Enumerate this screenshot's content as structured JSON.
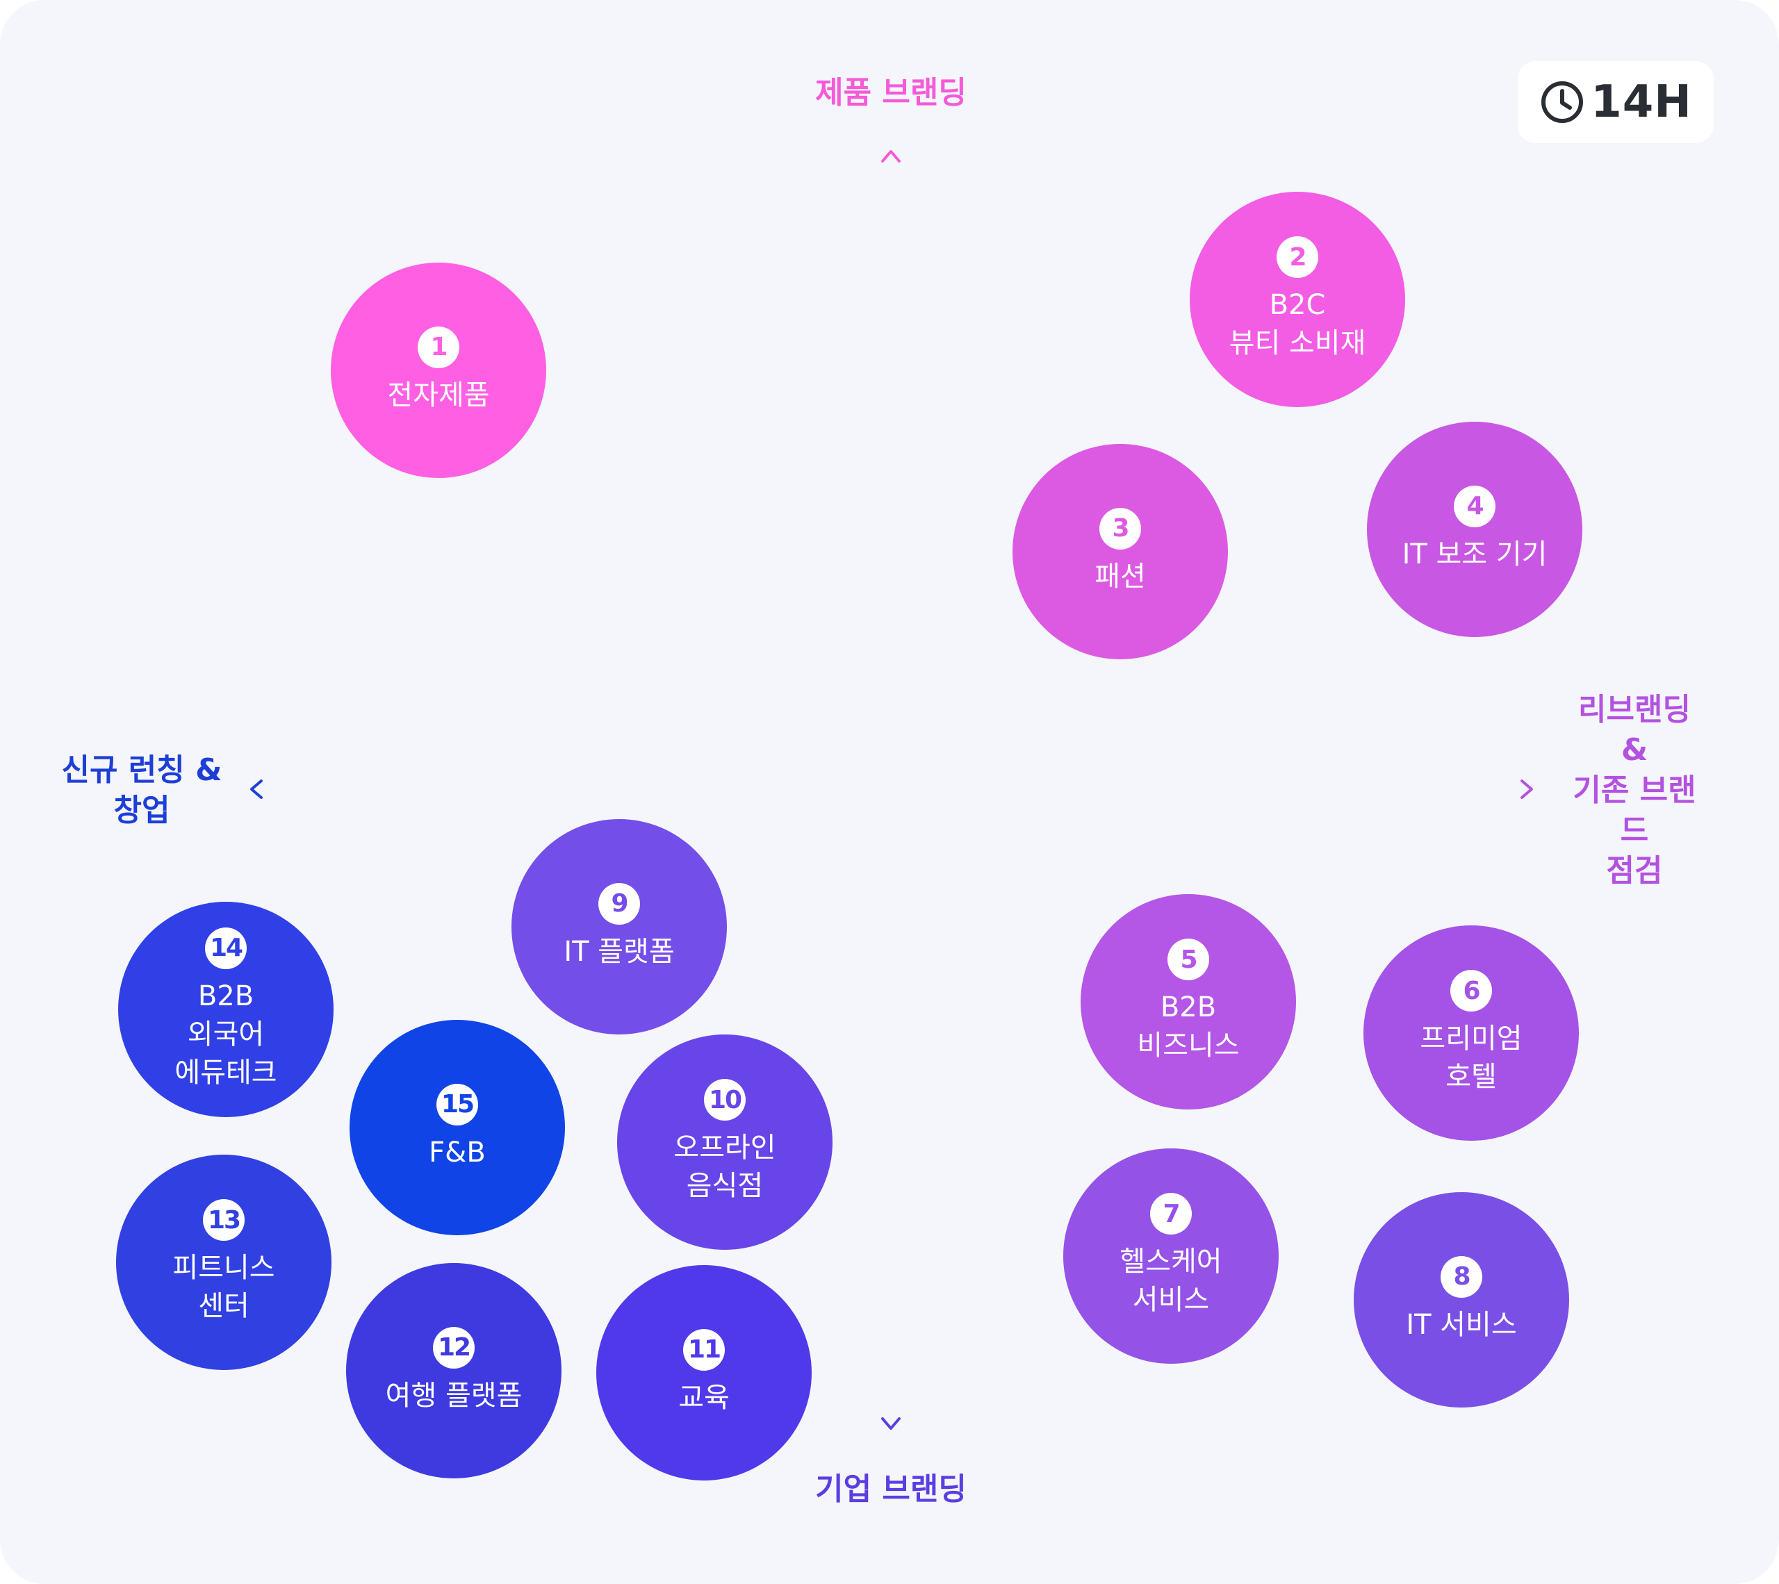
{
  "axes": {
    "top": "제품 브랜딩",
    "bottom": "기업 브랜딩",
    "left": "신규 런칭 &\n창업",
    "right": "리브랜딩 &\n기존 브랜드\n점검"
  },
  "time": "14H",
  "icons": {
    "clock": "clock-icon"
  },
  "colors": {
    "top_axis": "#f55ad8",
    "bottom_axis": "#5a3ee0",
    "left_axis": "#1e3fd6",
    "right_axis": "#b452e0"
  },
  "bubbles": [
    {
      "number": "1",
      "label": "전자제품",
      "color": "#ff5fe2"
    },
    {
      "number": "2",
      "label": "B2C\n뷰티 소비재",
      "color": "#f25de4"
    },
    {
      "number": "3",
      "label": "패션",
      "color": "#dc5ae2"
    },
    {
      "number": "4",
      "label": "IT 보조 기기",
      "color": "#c857e3"
    },
    {
      "number": "5",
      "label": "B2B\n비즈니스",
      "color": "#b456e6"
    },
    {
      "number": "6",
      "label": "프리미엄\n호텔",
      "color": "#a553e6"
    },
    {
      "number": "7",
      "label": "헬스케어\n서비스",
      "color": "#9453e6"
    },
    {
      "number": "8",
      "label": "IT 서비스",
      "color": "#7a4fe6"
    },
    {
      "number": "9",
      "label": "IT 플랫폼",
      "color": "#744ee8"
    },
    {
      "number": "10",
      "label": "오프라인\n음식점",
      "color": "#6845e8"
    },
    {
      "number": "11",
      "label": "교육",
      "color": "#5039ea"
    },
    {
      "number": "12",
      "label": "여행 플랫폼",
      "color": "#3e3ae0"
    },
    {
      "number": "13",
      "label": "피트니스\n센터",
      "color": "#3140e0"
    },
    {
      "number": "14",
      "label": "B2B\n외국어\n에듀테크",
      "color": "#3040e6"
    },
    {
      "number": "15",
      "label": "F&B",
      "color": "#1044e6"
    }
  ]
}
